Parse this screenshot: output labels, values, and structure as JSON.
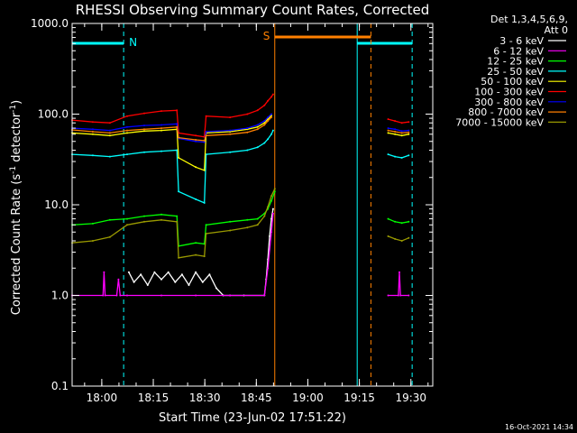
{
  "chart_data": {
    "type": "line",
    "title": "RHESSI Observing Summary Count Rates, Corrected",
    "xlabel": "Start Time (23-Jun-02 17:51:22)",
    "ylabel_main": "Corrected Count Rate (s",
    "ylabel_sup1": "-1",
    "ylabel_mid": " detector",
    "ylabel_sup2": "-1",
    "ylabel_end": ")",
    "yscale": "log",
    "ylim": [
      0.1,
      1000
    ],
    "xlim_min": [
      -6,
      99
    ],
    "yticks": [
      "0.1",
      "1.0",
      "10.0",
      "100.0",
      "1000.0"
    ],
    "ytick_values": [
      0.1,
      1,
      10,
      100,
      1000
    ],
    "xticks": [
      "18:00",
      "18:15",
      "18:30",
      "18:45",
      "19:00",
      "19:15",
      "19:30"
    ],
    "xtick_minutes": [
      2.633,
      17.633,
      32.633,
      47.633,
      62.633,
      77.633,
      92.633
    ],
    "legend": {
      "header1": "Det 1,3,4,5,6,9,",
      "header2": "Att 0",
      "placement": "top-right"
    },
    "series": [
      {
        "name": "3 - 6 keV",
        "color": "#ffffff",
        "points": [
          [
            10.5,
            1.8
          ],
          [
            12,
            1.4
          ],
          [
            14,
            1.7
          ],
          [
            16,
            1.3
          ],
          [
            18,
            1.8
          ],
          [
            20,
            1.5
          ],
          [
            22,
            1.8
          ],
          [
            24,
            1.4
          ],
          [
            26,
            1.7
          ],
          [
            28,
            1.3
          ],
          [
            30,
            1.8
          ],
          [
            32,
            1.4
          ],
          [
            34,
            1.7
          ],
          [
            36,
            1.2
          ],
          [
            38,
            1.0
          ],
          [
            40,
            1.0
          ],
          [
            44,
            1.0
          ],
          [
            50,
            1.0
          ],
          [
            50.5,
            1.5
          ],
          [
            51,
            2.5
          ],
          [
            51.5,
            4.5
          ],
          [
            52,
            7
          ],
          [
            52.5,
            9
          ]
        ]
      },
      {
        "name": "6 - 12 keV",
        "color": "#ff00ff",
        "points": [
          [
            -6,
            1.0
          ],
          [
            3,
            1.0
          ],
          [
            3.3,
            1.8
          ],
          [
            3.6,
            1.0
          ],
          [
            7,
            1.0
          ],
          [
            7.5,
            1.5
          ],
          [
            8,
            1.0
          ],
          [
            10,
            1.0
          ],
          [
            20,
            1.0
          ],
          [
            30,
            1.0
          ],
          [
            40,
            1.0
          ],
          [
            50,
            1.0
          ],
          [
            51,
            2
          ],
          [
            52,
            5
          ],
          [
            52.5,
            8
          ],
          [
            86,
            1.0
          ],
          [
            89,
            1.0
          ],
          [
            89.3,
            1.8
          ],
          [
            89.6,
            1.0
          ],
          [
            92,
            1.0
          ]
        ]
      },
      {
        "name": "12 - 25 keV",
        "color": "#00ff00",
        "points": [
          [
            -6,
            6
          ],
          [
            0,
            6.2
          ],
          [
            5,
            6.8
          ],
          [
            10,
            7
          ],
          [
            15,
            7.5
          ],
          [
            20,
            7.8
          ],
          [
            24.5,
            7.5
          ],
          [
            25,
            3.5
          ],
          [
            30,
            3.8
          ],
          [
            32.5,
            3.7
          ],
          [
            33,
            6
          ],
          [
            40,
            6.5
          ],
          [
            45,
            6.8
          ],
          [
            48,
            7
          ],
          [
            50,
            8
          ],
          [
            51,
            9
          ],
          [
            52,
            11
          ],
          [
            53,
            14
          ],
          [
            86,
            7
          ],
          [
            88,
            6.5
          ],
          [
            90,
            6.3
          ],
          [
            92,
            6.5
          ]
        ]
      },
      {
        "name": "25 - 50 keV",
        "color": "#00ffff",
        "points": [
          [
            -6,
            36
          ],
          [
            0,
            35
          ],
          [
            5,
            34
          ],
          [
            10,
            36
          ],
          [
            15,
            38
          ],
          [
            20,
            39
          ],
          [
            24.5,
            40
          ],
          [
            25,
            14
          ],
          [
            30,
            11.5
          ],
          [
            32.5,
            10.5
          ],
          [
            33,
            36
          ],
          [
            40,
            38
          ],
          [
            45,
            40
          ],
          [
            48,
            43
          ],
          [
            50,
            48
          ],
          [
            51,
            53
          ],
          [
            52,
            60
          ],
          [
            52.5,
            66
          ],
          [
            86,
            36
          ],
          [
            88,
            34
          ],
          [
            90,
            33
          ],
          [
            92,
            35
          ]
        ]
      },
      {
        "name": "50 - 100 keV",
        "color": "#ffff00",
        "points": [
          [
            -6,
            62
          ],
          [
            0,
            60
          ],
          [
            5,
            58
          ],
          [
            10,
            62
          ],
          [
            15,
            65
          ],
          [
            20,
            66
          ],
          [
            24.5,
            68
          ],
          [
            25,
            33
          ],
          [
            30,
            26
          ],
          [
            32.5,
            24
          ],
          [
            33,
            62
          ],
          [
            40,
            64
          ],
          [
            45,
            68
          ],
          [
            48,
            72
          ],
          [
            50,
            80
          ],
          [
            51,
            88
          ],
          [
            52,
            96
          ],
          [
            86,
            62
          ],
          [
            88,
            60
          ],
          [
            90,
            58
          ],
          [
            92,
            60
          ]
        ]
      },
      {
        "name": "100 - 300 keV",
        "color": "#ff0000",
        "points": [
          [
            -6,
            86
          ],
          [
            0,
            82
          ],
          [
            5,
            80
          ],
          [
            10,
            95
          ],
          [
            15,
            102
          ],
          [
            20,
            108
          ],
          [
            24.5,
            110
          ],
          [
            25,
            62
          ],
          [
            30,
            58
          ],
          [
            32.5,
            56
          ],
          [
            33,
            95
          ],
          [
            40,
            92
          ],
          [
            45,
            100
          ],
          [
            48,
            110
          ],
          [
            50,
            125
          ],
          [
            51,
            140
          ],
          [
            52,
            155
          ],
          [
            52.5,
            165
          ],
          [
            86,
            88
          ],
          [
            88,
            84
          ],
          [
            90,
            80
          ],
          [
            92,
            82
          ]
        ]
      },
      {
        "name": "300 - 800 keV",
        "color": "#0000ff",
        "points": [
          [
            -6,
            70
          ],
          [
            0,
            68
          ],
          [
            5,
            66
          ],
          [
            10,
            72
          ],
          [
            15,
            75
          ],
          [
            20,
            76
          ],
          [
            24.5,
            78
          ],
          [
            25,
            54
          ],
          [
            30,
            50
          ],
          [
            32.5,
            49
          ],
          [
            33,
            64
          ],
          [
            40,
            66
          ],
          [
            45,
            70
          ],
          [
            48,
            76
          ],
          [
            50,
            84
          ],
          [
            51,
            92
          ],
          [
            52,
            100
          ],
          [
            86,
            70
          ],
          [
            88,
            68
          ],
          [
            90,
            65
          ],
          [
            92,
            66
          ]
        ]
      },
      {
        "name": "800 - 7000 keV",
        "color": "#ff8000",
        "points": [
          [
            -6,
            67
          ],
          [
            0,
            64
          ],
          [
            5,
            62
          ],
          [
            10,
            66
          ],
          [
            15,
            68
          ],
          [
            20,
            70
          ],
          [
            24.5,
            72
          ],
          [
            25,
            55
          ],
          [
            30,
            52
          ],
          [
            32.5,
            51
          ],
          [
            33,
            58
          ],
          [
            40,
            60
          ],
          [
            45,
            63
          ],
          [
            48,
            68
          ],
          [
            50,
            76
          ],
          [
            51,
            84
          ],
          [
            52,
            92
          ],
          [
            86,
            66
          ],
          [
            88,
            64
          ],
          [
            90,
            62
          ],
          [
            92,
            63
          ]
        ]
      },
      {
        "name": "7000 - 15000 keV",
        "color": "#999900",
        "points": [
          [
            -6,
            3.8
          ],
          [
            0,
            4.0
          ],
          [
            5,
            4.4
          ],
          [
            10,
            6
          ],
          [
            15,
            6.5
          ],
          [
            20,
            6.8
          ],
          [
            24.5,
            6.5
          ],
          [
            25,
            2.6
          ],
          [
            30,
            2.8
          ],
          [
            32.5,
            2.7
          ],
          [
            33,
            4.8
          ],
          [
            40,
            5.2
          ],
          [
            45,
            5.6
          ],
          [
            48,
            6
          ],
          [
            50,
            7.5
          ],
          [
            51,
            9.5
          ],
          [
            52,
            12.5
          ],
          [
            53,
            15
          ],
          [
            86,
            4.5
          ],
          [
            88,
            4.2
          ],
          [
            90,
            4.0
          ],
          [
            92,
            4.3
          ]
        ]
      }
    ],
    "annotations": {
      "night_label": "N",
      "saa_label": "S",
      "night_color": "#00ffff",
      "saa_color": "#ff8000",
      "night_intervals": [
        [
          -6,
          9
        ],
        [
          77,
          93
        ]
      ],
      "saa_intervals": [
        [
          53,
          81
        ]
      ],
      "night_start_minutes": [
        -6,
        77
      ],
      "night_end_minutes": [
        9,
        93
      ],
      "saa_start_minutes": [
        53
      ],
      "saa_end_minutes": [
        81
      ]
    },
    "grid": false
  },
  "footer": {
    "timestamp": "16-Oct-2021 14:34"
  }
}
